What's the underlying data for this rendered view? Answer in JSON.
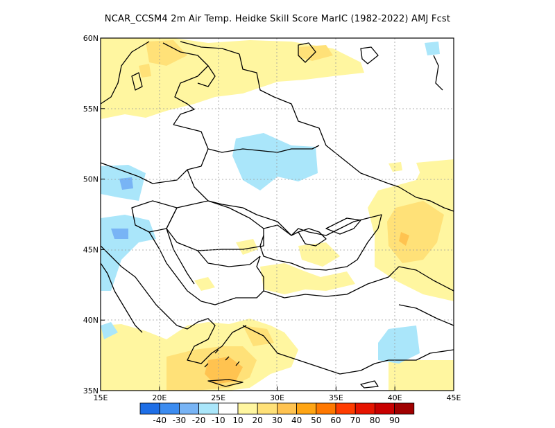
{
  "title": "NCAR_CCSM4  2m Air Temp. Heidke Skill Score MarIC (1982-2022) AMJ Fcst",
  "lon_labels": [
    "15E",
    "20E",
    "25E",
    "30E",
    "35E",
    "40E",
    "45E"
  ],
  "lat_labels": [
    "35N",
    "40N",
    "45N",
    "50N",
    "55N",
    "60N"
  ],
  "colorbar": {
    "colors": [
      "#1e6ee6",
      "#3c8cf0",
      "#78b4f5",
      "#aae6fa",
      "#ffffff",
      "#fff6a0",
      "#ffe178",
      "#ffc350",
      "#ffa514",
      "#ff7800",
      "#ff3c00",
      "#e61400",
      "#c80000",
      "#a00000"
    ],
    "labels": [
      "-40",
      "-30",
      "-20",
      "-10",
      "10",
      "20",
      "30",
      "40",
      "50",
      "60",
      "70",
      "80",
      "90"
    ]
  },
  "map_extent": {
    "lon": [
      15,
      45
    ],
    "lat": [
      35,
      60
    ]
  }
}
